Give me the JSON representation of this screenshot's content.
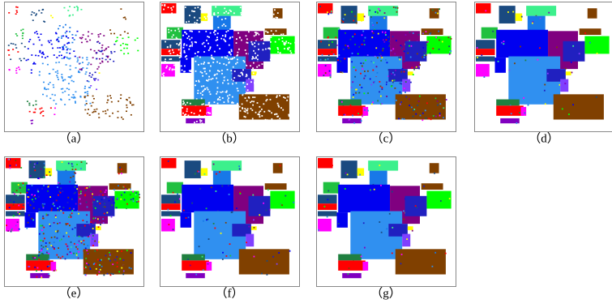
{
  "panels": [
    {
      "label": "（a）"
    },
    {
      "label": "（b）"
    },
    {
      "label": "（c）"
    },
    {
      "label": "（d）"
    },
    {
      "label": "（e）"
    },
    {
      "label": "（f）"
    },
    {
      "label": "（g）"
    }
  ]
}
